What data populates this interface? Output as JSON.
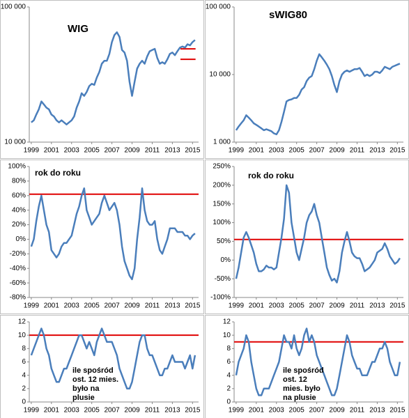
{
  "chart_data": [
    {
      "type": "line",
      "annotation": "WIG",
      "log_scale": true,
      "grid": false,
      "x": [
        1999,
        1999.25,
        1999.5,
        1999.75,
        2000,
        2000.25,
        2000.5,
        2000.75,
        2001,
        2001.25,
        2001.5,
        2001.75,
        2002,
        2002.25,
        2002.5,
        2002.75,
        2003,
        2003.25,
        2003.5,
        2003.75,
        2004,
        2004.25,
        2004.5,
        2004.75,
        2005,
        2005.25,
        2005.5,
        2005.75,
        2006,
        2006.25,
        2006.5,
        2006.75,
        2007,
        2007.25,
        2007.5,
        2007.75,
        2008,
        2008.25,
        2008.5,
        2008.75,
        2009,
        2009.25,
        2009.5,
        2009.75,
        2010,
        2010.25,
        2010.5,
        2010.75,
        2011,
        2011.25,
        2011.5,
        2011.75,
        2012,
        2012.25,
        2012.5,
        2012.75,
        2013,
        2013.25,
        2013.5,
        2013.75,
        2014,
        2014.25,
        2014.5,
        2014.75,
        2015,
        2015.25
      ],
      "series": [
        {
          "color": "#4a7ebb",
          "values": [
            14000,
            14500,
            16000,
            17500,
            20000,
            19000,
            18000,
            17500,
            16000,
            15500,
            14500,
            14000,
            14500,
            14000,
            13500,
            14000,
            14500,
            15500,
            18000,
            20000,
            23000,
            22000,
            23500,
            26000,
            27000,
            26500,
            30000,
            33000,
            38000,
            40000,
            40000,
            45000,
            55000,
            62000,
            65000,
            60000,
            48000,
            46000,
            40000,
            28000,
            22000,
            28000,
            35000,
            38000,
            40000,
            38000,
            43000,
            47000,
            48000,
            49000,
            42000,
            38000,
            39000,
            38000,
            41000,
            45000,
            46000,
            44000,
            47000,
            50000,
            51000,
            50000,
            53000,
            52000,
            55000,
            57000
          ]
        }
      ],
      "reference_lines": [
        {
          "value": 49000,
          "x": [
            2013.8,
            2015.3
          ],
          "color": "#e00000"
        },
        {
          "value": 41000,
          "x": [
            2013.8,
            2015.3
          ],
          "color": "#e00000"
        }
      ],
      "xlim": [
        1998.8,
        2015.6
      ],
      "xticks": [
        1999,
        2001,
        2003,
        2005,
        2007,
        2009,
        2011,
        2013,
        2015
      ],
      "ylim": [
        10000,
        100000
      ],
      "yticks": [
        {
          "value": 10000,
          "label": "10 000"
        },
        {
          "value": 100000,
          "label": "100 000"
        }
      ]
    },
    {
      "type": "line",
      "annotation": "sWIG80",
      "log_scale": true,
      "grid": false,
      "x": [
        1999,
        1999.25,
        1999.5,
        1999.75,
        2000,
        2000.25,
        2000.5,
        2000.75,
        2001,
        2001.25,
        2001.5,
        2001.75,
        2002,
        2002.25,
        2002.5,
        2002.75,
        2003,
        2003.25,
        2003.5,
        2003.75,
        2004,
        2004.25,
        2004.5,
        2004.75,
        2005,
        2005.25,
        2005.5,
        2005.75,
        2006,
        2006.25,
        2006.5,
        2006.75,
        2007,
        2007.25,
        2007.5,
        2007.75,
        2008,
        2008.25,
        2008.5,
        2008.75,
        2009,
        2009.25,
        2009.5,
        2009.75,
        2010,
        2010.25,
        2010.5,
        2010.75,
        2011,
        2011.25,
        2011.5,
        2011.75,
        2012,
        2012.25,
        2012.5,
        2012.75,
        2013,
        2013.25,
        2013.5,
        2013.75,
        2014,
        2014.25,
        2014.5,
        2014.75,
        2015,
        2015.25
      ],
      "series": [
        {
          "color": "#4a7ebb",
          "values": [
            1500,
            1700,
            1900,
            2100,
            2500,
            2300,
            2100,
            1900,
            1800,
            1700,
            1600,
            1500,
            1550,
            1500,
            1450,
            1350,
            1300,
            1500,
            2000,
            2800,
            4000,
            4200,
            4300,
            4500,
            4500,
            5000,
            6000,
            6500,
            8000,
            9000,
            9500,
            12000,
            16000,
            20000,
            18000,
            16000,
            14000,
            12000,
            9500,
            7000,
            5500,
            8000,
            10000,
            11000,
            11500,
            11000,
            11500,
            12000,
            12000,
            12500,
            11000,
            9500,
            10000,
            9500,
            10000,
            11000,
            11000,
            10500,
            11500,
            13000,
            12500,
            12000,
            13000,
            13500,
            14000,
            14500
          ]
        }
      ],
      "xlim": [
        1998.8,
        2015.6
      ],
      "xticks": [
        1999,
        2001,
        2003,
        2005,
        2007,
        2009,
        2011,
        2013,
        2015
      ],
      "ylim": [
        1000,
        100000
      ],
      "yticks": [
        {
          "value": 1000,
          "label": "1 000"
        },
        {
          "value": 10000,
          "label": "10 000"
        },
        {
          "value": 100000,
          "label": "100 000"
        }
      ]
    },
    {
      "type": "line",
      "annotation": "rok do roku",
      "grid": false,
      "x": [
        1999,
        1999.25,
        1999.5,
        1999.75,
        2000,
        2000.25,
        2000.5,
        2000.75,
        2001,
        2001.25,
        2001.5,
        2001.75,
        2002,
        2002.25,
        2002.5,
        2002.75,
        2003,
        2003.25,
        2003.5,
        2003.75,
        2004,
        2004.25,
        2004.5,
        2004.75,
        2005,
        2005.25,
        2005.5,
        2005.75,
        2006,
        2006.25,
        2006.5,
        2006.75,
        2007,
        2007.25,
        2007.5,
        2007.75,
        2008,
        2008.25,
        2008.5,
        2008.75,
        2009,
        2009.25,
        2009.5,
        2009.75,
        2010,
        2010.25,
        2010.5,
        2010.75,
        2011,
        2011.25,
        2011.5,
        2011.75,
        2012,
        2012.25,
        2012.5,
        2012.75,
        2013,
        2013.25,
        2013.5,
        2013.75,
        2014,
        2014.25,
        2014.5,
        2014.75,
        2015,
        2015.25
      ],
      "series": [
        {
          "color": "#4a7ebb",
          "values": [
            -10,
            0,
            25,
            45,
            60,
            40,
            20,
            10,
            -15,
            -20,
            -25,
            -20,
            -10,
            -5,
            -5,
            0,
            5,
            20,
            35,
            45,
            60,
            70,
            40,
            30,
            20,
            25,
            30,
            35,
            50,
            60,
            50,
            40,
            45,
            50,
            40,
            20,
            -10,
            -30,
            -40,
            -50,
            -55,
            -40,
            0,
            30,
            70,
            40,
            25,
            20,
            20,
            25,
            0,
            -15,
            -20,
            -10,
            0,
            15,
            15,
            15,
            10,
            10,
            10,
            5,
            5,
            0,
            5,
            8
          ]
        }
      ],
      "reference_lines": [
        {
          "value": 62,
          "color": "#e00000"
        }
      ],
      "xlim": [
        1998.8,
        2015.6
      ],
      "xticks": [
        1999,
        2001,
        2003,
        2005,
        2007,
        2009,
        2011,
        2013,
        2015
      ],
      "ylim": [
        -80,
        100
      ],
      "yticks": [
        {
          "value": -80,
          "label": "-80%"
        },
        {
          "value": -60,
          "label": "-60%"
        },
        {
          "value": -40,
          "label": "-40%"
        },
        {
          "value": -20,
          "label": "-20%"
        },
        {
          "value": 0,
          "label": "0%"
        },
        {
          "value": 20,
          "label": "20%"
        },
        {
          "value": 40,
          "label": "40%"
        },
        {
          "value": 60,
          "label": "60%"
        },
        {
          "value": 80,
          "label": "80%"
        },
        {
          "value": 100,
          "label": "100%"
        }
      ]
    },
    {
      "type": "line",
      "annotation": "rok do roku",
      "grid": false,
      "x": [
        1999,
        1999.25,
        1999.5,
        1999.75,
        2000,
        2000.25,
        2000.5,
        2000.75,
        2001,
        2001.25,
        2001.5,
        2001.75,
        2002,
        2002.25,
        2002.5,
        2002.75,
        2003,
        2003.25,
        2003.5,
        2003.75,
        2004,
        2004.25,
        2004.5,
        2004.75,
        2005,
        2005.25,
        2005.5,
        2005.75,
        2006,
        2006.25,
        2006.5,
        2006.75,
        2007,
        2007.25,
        2007.5,
        2007.75,
        2008,
        2008.25,
        2008.5,
        2008.75,
        2009,
        2009.25,
        2009.5,
        2009.75,
        2010,
        2010.25,
        2010.5,
        2010.75,
        2011,
        2011.25,
        2011.5,
        2011.75,
        2012,
        2012.25,
        2012.5,
        2012.75,
        2013,
        2013.25,
        2013.5,
        2013.75,
        2014,
        2014.25,
        2014.5,
        2014.75,
        2015,
        2015.25
      ],
      "series": [
        {
          "color": "#4a7ebb",
          "values": [
            -50,
            -20,
            20,
            60,
            75,
            60,
            40,
            20,
            -10,
            -30,
            -30,
            -25,
            -15,
            -20,
            -20,
            -25,
            -20,
            20,
            60,
            110,
            200,
            180,
            100,
            60,
            20,
            0,
            30,
            60,
            100,
            120,
            130,
            150,
            120,
            100,
            60,
            20,
            -20,
            -40,
            -55,
            -50,
            -60,
            -30,
            20,
            50,
            75,
            50,
            20,
            10,
            5,
            5,
            -10,
            -30,
            -25,
            -20,
            -10,
            0,
            20,
            25,
            30,
            45,
            30,
            10,
            0,
            -10,
            -5,
            5
          ]
        }
      ],
      "reference_lines": [
        {
          "value": 55,
          "color": "#e00000"
        }
      ],
      "xlim": [
        1998.8,
        2015.6
      ],
      "xticks": [
        1999,
        2001,
        2003,
        2005,
        2007,
        2009,
        2011,
        2013,
        2015
      ],
      "ylim": [
        -100,
        250
      ],
      "yticks": [
        {
          "value": -100,
          "label": "-100%"
        },
        {
          "value": -50,
          "label": "-50%"
        },
        {
          "value": 0,
          "label": "0%"
        },
        {
          "value": 50,
          "label": "50%"
        },
        {
          "value": 100,
          "label": "100%"
        },
        {
          "value": 150,
          "label": "150%"
        },
        {
          "value": 200,
          "label": "200%"
        },
        {
          "value": 250,
          "label": "250%"
        }
      ]
    },
    {
      "type": "line",
      "annotation_lines": [
        "ile spośród",
        "ost. 12 mies.",
        "było na",
        "plusie"
      ],
      "grid": false,
      "x": [
        1999,
        1999.25,
        1999.5,
        1999.75,
        2000,
        2000.25,
        2000.5,
        2000.75,
        2001,
        2001.25,
        2001.5,
        2001.75,
        2002,
        2002.25,
        2002.5,
        2002.75,
        2003,
        2003.25,
        2003.5,
        2003.75,
        2004,
        2004.25,
        2004.5,
        2004.75,
        2005,
        2005.25,
        2005.5,
        2005.75,
        2006,
        2006.25,
        2006.5,
        2006.75,
        2007,
        2007.25,
        2007.5,
        2007.75,
        2008,
        2008.25,
        2008.5,
        2008.75,
        2009,
        2009.25,
        2009.5,
        2009.75,
        2010,
        2010.25,
        2010.5,
        2010.75,
        2011,
        2011.25,
        2011.5,
        2011.75,
        2012,
        2012.25,
        2012.5,
        2012.75,
        2013,
        2013.25,
        2013.5,
        2013.75,
        2014,
        2014.25,
        2014.5,
        2014.75,
        2015,
        2015.25
      ],
      "series": [
        {
          "color": "#4a7ebb",
          "values": [
            7,
            8,
            9,
            10,
            11,
            10,
            8,
            7,
            5,
            4,
            3,
            3,
            4,
            5,
            5,
            6,
            7,
            8,
            9,
            10,
            10,
            9,
            8,
            9,
            8,
            7,
            9,
            10,
            11,
            10,
            9,
            9,
            9,
            8,
            7,
            5,
            4,
            3,
            2,
            2,
            3,
            5,
            7,
            9,
            10,
            10,
            8,
            7,
            7,
            6,
            5,
            4,
            4,
            5,
            5,
            6,
            7,
            6,
            6,
            6,
            6,
            5,
            6,
            7,
            5,
            7
          ]
        }
      ],
      "reference_lines": [
        {
          "value": 10,
          "color": "#e00000"
        }
      ],
      "xlim": [
        1998.8,
        2015.6
      ],
      "xticks": [
        1999,
        2001,
        2003,
        2005,
        2007,
        2009,
        2011,
        2013,
        2015
      ],
      "ylim": [
        0,
        12
      ],
      "yticks": [
        0,
        2,
        4,
        6,
        8,
        10,
        12
      ]
    },
    {
      "type": "line",
      "annotation_lines": [
        "ile spośród",
        "ost. 12",
        "mies. było",
        "na plusie"
      ],
      "grid": false,
      "x": [
        1999,
        1999.25,
        1999.5,
        1999.75,
        2000,
        2000.25,
        2000.5,
        2000.75,
        2001,
        2001.25,
        2001.5,
        2001.75,
        2002,
        2002.25,
        2002.5,
        2002.75,
        2003,
        2003.25,
        2003.5,
        2003.75,
        2004,
        2004.25,
        2004.5,
        2004.75,
        2005,
        2005.25,
        2005.5,
        2005.75,
        2006,
        2006.25,
        2006.5,
        2006.75,
        2007,
        2007.25,
        2007.5,
        2007.75,
        2008,
        2008.25,
        2008.5,
        2008.75,
        2009,
        2009.25,
        2009.5,
        2009.75,
        2010,
        2010.25,
        2010.5,
        2010.75,
        2011,
        2011.25,
        2011.5,
        2011.75,
        2012,
        2012.25,
        2012.5,
        2012.75,
        2013,
        2013.25,
        2013.5,
        2013.75,
        2014,
        2014.25,
        2014.5,
        2014.75,
        2015,
        2015.25
      ],
      "series": [
        {
          "color": "#4a7ebb",
          "values": [
            4,
            6,
            7,
            8,
            10,
            9,
            6,
            4,
            2,
            1,
            1,
            2,
            2,
            2,
            3,
            4,
            5,
            6,
            8,
            10,
            9,
            9,
            8,
            10,
            8,
            7,
            8,
            10,
            11,
            9,
            10,
            9,
            7,
            6,
            5,
            4,
            3,
            2,
            1,
            1,
            2,
            4,
            6,
            8,
            10,
            9,
            7,
            6,
            5,
            5,
            4,
            4,
            4,
            5,
            6,
            6,
            7,
            8,
            8,
            9,
            8,
            6,
            5,
            4,
            4,
            6
          ]
        }
      ],
      "reference_lines": [
        {
          "value": 9,
          "color": "#e00000"
        }
      ],
      "xlim": [
        1998.8,
        2015.6
      ],
      "xticks": [
        1999,
        2001,
        2003,
        2005,
        2007,
        2009,
        2011,
        2013,
        2015
      ],
      "ylim": [
        0,
        12
      ],
      "yticks": [
        0,
        2,
        4,
        6,
        8,
        10,
        12
      ]
    }
  ]
}
